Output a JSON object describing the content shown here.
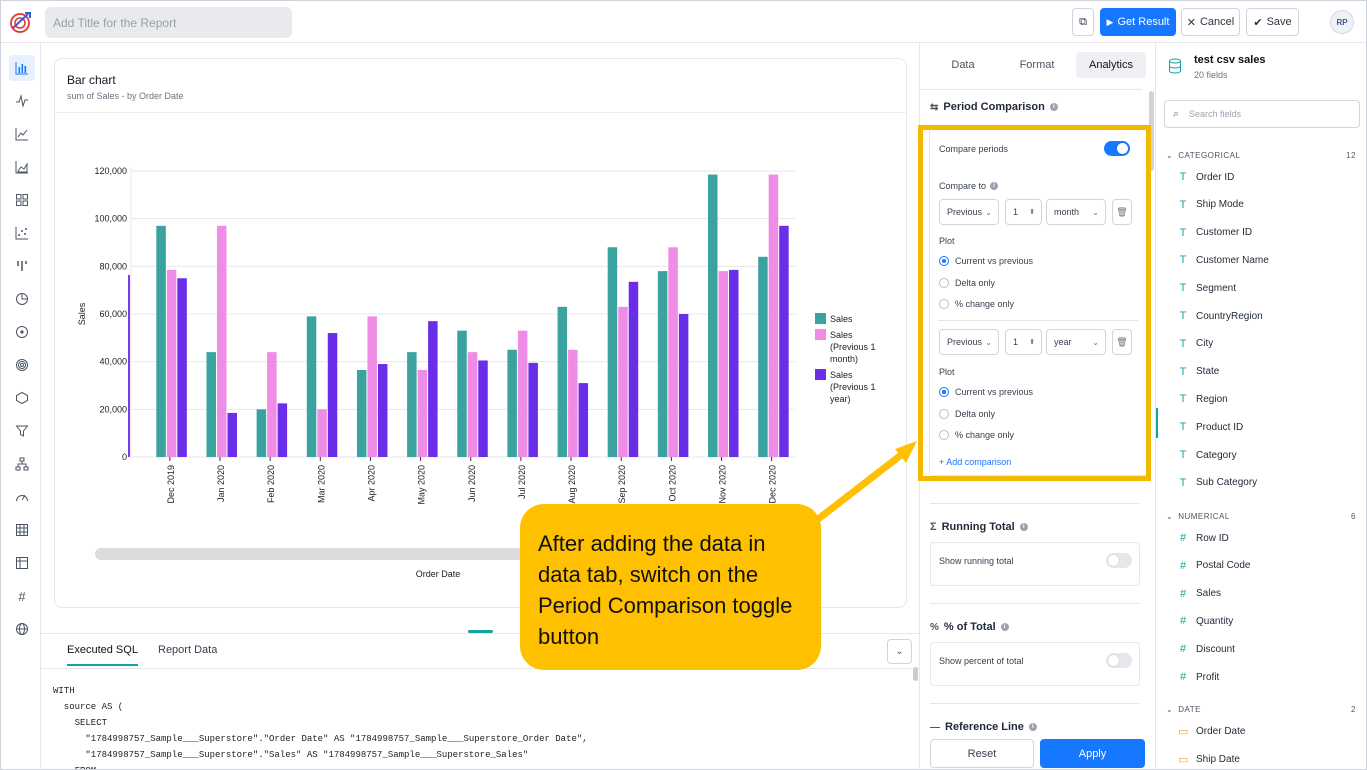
{
  "header": {
    "title_placeholder": "Add Title for the Report",
    "get_result_label": "Get Result",
    "cancel_label": "Cancel",
    "save_label": "Save",
    "avatar_initials": "RP"
  },
  "rail": {
    "icons": [
      "bar-chart-icon",
      "line-chart-icon",
      "trend-chart-icon",
      "area-chart-icon",
      "grid-chart-icon",
      "scatter-chart-icon",
      "column-chart-icon",
      "pie-chart-icon",
      "donut-chart-icon",
      "radar-chart-icon",
      "polygon-chart-icon",
      "funnel-chart-icon",
      "tree-chart-icon",
      "gauge-chart-icon",
      "table-icon",
      "pivot-table-icon",
      "number-icon",
      "map-icon"
    ]
  },
  "chart": {
    "title": "Bar chart",
    "subtitle": "sum of Sales - by Order Date"
  },
  "chart_data": {
    "type": "bar",
    "xlabel": "Order Date",
    "ylabel": "Sales",
    "ylim": [
      0,
      120000
    ],
    "yticks": [
      "0",
      "20,000",
      "40,000",
      "60,000",
      "80,000",
      "100,000",
      "120,000"
    ],
    "categories": [
      "Dec 2019",
      "Jan 2020",
      "Feb 2020",
      "Mar 2020",
      "Apr 2020",
      "May 2020",
      "Jun 2020",
      "Jul 2020",
      "Aug 2020",
      "Sep 2020",
      "Oct 2020",
      "Nov 2020",
      "Dec 2020"
    ],
    "legend_position": "right",
    "grid": true,
    "series": [
      {
        "name": "Sales",
        "color": "#3aa39f",
        "values": [
          97000,
          44000,
          20000,
          59000,
          36500,
          44000,
          53000,
          45000,
          63000,
          88000,
          78000,
          118500,
          84000
        ]
      },
      {
        "name": "Sales (Previous 1 month)",
        "color": "#ef8ce6",
        "values": [
          78500,
          97000,
          44000,
          20000,
          59000,
          36500,
          44000,
          53000,
          45000,
          63000,
          88000,
          78000,
          118500
        ]
      },
      {
        "name": "Sales (Previous 1 year)",
        "color": "#6b2ee8",
        "values": [
          75000,
          18500,
          22500,
          52000,
          39000,
          57000,
          40500,
          39500,
          31000,
          73500,
          60000,
          78500,
          97000
        ]
      }
    ]
  },
  "bottom": {
    "tab_sql": "Executed SQL",
    "tab_data": "Report Data",
    "sql_lines": [
      "WITH",
      "  source AS (",
      "    SELECT",
      "      \"1784998757_Sample___Superstore\".\"Order Date\" AS \"1784998757_Sample___Superstore_Order Date\",",
      "      \"1784998757_Sample___Superstore\".\"Sales\" AS \"1784998757_Sample___Superstore_Sales\"",
      "    FROM"
    ]
  },
  "config": {
    "tabs": [
      "Data",
      "Format",
      "Analytics"
    ],
    "period_comparison": {
      "title": "Period Comparison",
      "compare_periods_label": "Compare periods",
      "compare_to_label": "Compare to",
      "row1": {
        "direction": "Previous",
        "count": "1",
        "unit": "month"
      },
      "row2": {
        "direction": "Previous",
        "count": "1",
        "unit": "year"
      },
      "plot_label": "Plot",
      "plot_options": [
        "Current vs previous",
        "Delta only",
        "% change only"
      ],
      "add_comparison": "+ Add comparison"
    },
    "running_total": {
      "title": "Running Total",
      "option": "Show running total"
    },
    "percent_total": {
      "title": "% of Total",
      "option": "Show percent of total"
    },
    "reference_line": {
      "title": "Reference Line"
    },
    "reset_label": "Reset",
    "apply_label": "Apply"
  },
  "fields": {
    "dataset_name": "test csv sales",
    "dataset_count": "20 fields",
    "search_placeholder": "Search fields",
    "categorical": {
      "label": "CATEGORICAL",
      "count": "12",
      "items": [
        "Order ID",
        "Ship Mode",
        "Customer ID",
        "Customer Name",
        "Segment",
        "CountryRegion",
        "City",
        "State",
        "Region",
        "Product ID",
        "Category",
        "Sub Category"
      ]
    },
    "numerical": {
      "label": "NUMERICAL",
      "count": "6",
      "items": [
        "Row ID",
        "Postal Code",
        "Sales",
        "Quantity",
        "Discount",
        "Profit"
      ]
    },
    "date": {
      "label": "DATE",
      "count": "2",
      "items": [
        "Order Date",
        "Ship Date"
      ]
    }
  },
  "callout": {
    "text": "After adding the data in data tab, switch on the Period Comparison toggle button",
    "color": "#ffc000"
  }
}
